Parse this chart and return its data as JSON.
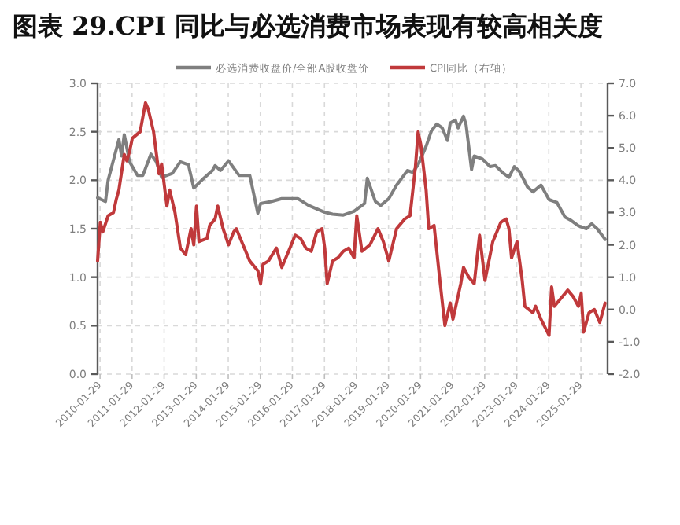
{
  "chart_data": {
    "type": "line",
    "title": "图表 29.CPI 同比与必选消费市场表现有较高相关度",
    "legend": "top",
    "grid": true,
    "xlim": [
      "2010-01-01",
      "2025-11-29"
    ],
    "xticks": [
      "2010-01-29",
      "2011-01-29",
      "2012-01-29",
      "2013-01-29",
      "2014-01-29",
      "2015-01-29",
      "2016-01-29",
      "2017-01-29",
      "2018-01-29",
      "2019-01-29",
      "2020-01-29",
      "2021-01-29",
      "2022-01-29",
      "2023-01-29",
      "2024-01-29",
      "2025-01-29"
    ],
    "ylim": [
      0,
      3
    ],
    "yticks": [
      {
        "value": 0,
        "label": "0.0"
      },
      0.5,
      {
        "value": 1,
        "label": "1.0"
      },
      1.5,
      {
        "value": 2,
        "label": "2.0"
      },
      2.5,
      {
        "value": 3,
        "label": "3.0"
      }
    ],
    "y2lim": [
      -2,
      7
    ],
    "y2ticks": [
      {
        "value": -2,
        "label": "-2.0"
      },
      {
        "value": -1,
        "label": "-1.0"
      },
      {
        "value": 0,
        "label": "0.0"
      },
      {
        "value": 1,
        "label": "1.0"
      },
      {
        "value": 2,
        "label": "2.0"
      },
      {
        "value": 3,
        "label": "3.0"
      },
      {
        "value": 4,
        "label": "4.0"
      },
      {
        "value": 5,
        "label": "5.0"
      },
      {
        "value": 6,
        "label": "6.0"
      },
      {
        "value": 7,
        "label": "7.0"
      }
    ],
    "series": [
      {
        "name": "必选消费收盘价/全部A股收盘价",
        "color": "#7f7f7f",
        "x": [
          "2010-01",
          "2010-04",
          "2010-05",
          "2010-09",
          "2010-10",
          "2010-11",
          "2011-01",
          "2011-04",
          "2011-06",
          "2011-09",
          "2011-11",
          "2012-01",
          "2012-05",
          "2012-08",
          "2012-11",
          "2013-01",
          "2013-04",
          "2013-08",
          "2013-09",
          "2013-11",
          "2014-02",
          "2014-06",
          "2014-10",
          "2015-01",
          "2015-02",
          "2015-06",
          "2015-10",
          "2016-04",
          "2016-08",
          "2017-02",
          "2017-05",
          "2017-09",
          "2018-01",
          "2018-05",
          "2018-06",
          "2018-09",
          "2018-11",
          "2019-02",
          "2019-05",
          "2019-09",
          "2019-11",
          "2020-01",
          "2020-04",
          "2020-06",
          "2020-08",
          "2020-10",
          "2020-12",
          "2021-01",
          "2021-03",
          "2021-04",
          "2021-06",
          "2021-07",
          "2021-09",
          "2021-10",
          "2022-01",
          "2022-04",
          "2022-06",
          "2022-09",
          "2022-11",
          "2023-01",
          "2023-03",
          "2023-06",
          "2023-08",
          "2023-11",
          "2024-02",
          "2024-05",
          "2024-08",
          "2024-10",
          "2025-01",
          "2025-04",
          "2025-06",
          "2025-08",
          "2025-11"
        ],
        "values": [
          1.82,
          1.78,
          2.0,
          2.42,
          2.25,
          2.47,
          2.19,
          2.05,
          2.05,
          2.27,
          2.19,
          2.03,
          2.07,
          2.19,
          2.16,
          1.92,
          2.0,
          2.1,
          2.15,
          2.1,
          2.2,
          2.05,
          2.05,
          1.66,
          1.76,
          1.78,
          1.81,
          1.81,
          1.74,
          1.67,
          1.65,
          1.64,
          1.68,
          1.76,
          2.02,
          1.78,
          1.74,
          1.81,
          1.95,
          2.1,
          2.08,
          2.16,
          2.35,
          2.51,
          2.58,
          2.54,
          2.41,
          2.59,
          2.62,
          2.54,
          2.66,
          2.57,
          2.11,
          2.25,
          2.22,
          2.14,
          2.15,
          2.07,
          2.03,
          2.14,
          2.09,
          1.93,
          1.88,
          1.95,
          1.8,
          1.77,
          1.62,
          1.59,
          1.53,
          1.5,
          1.55,
          1.5,
          1.39
        ]
      },
      {
        "name": "CPI同比（右轴）",
        "color": "#c0393b",
        "axis": "y2",
        "x": [
          "2010-01",
          "2010-02",
          "2010-03",
          "2010-05",
          "2010-07",
          "2010-08",
          "2010-09",
          "2010-11",
          "2010-12",
          "2011-01",
          "2011-02",
          "2011-05",
          "2011-07",
          "2011-08",
          "2011-10",
          "2011-12",
          "2012-01",
          "2012-03",
          "2012-04",
          "2012-06",
          "2012-08",
          "2012-10",
          "2012-12",
          "2013-01",
          "2013-02",
          "2013-03",
          "2013-06",
          "2013-07",
          "2013-09",
          "2013-10",
          "2013-12",
          "2014-02",
          "2014-04",
          "2014-05",
          "2014-07",
          "2014-10",
          "2015-01",
          "2015-02",
          "2015-03",
          "2015-05",
          "2015-08",
          "2015-10",
          "2016-01",
          "2016-03",
          "2016-05",
          "2016-07",
          "2016-09",
          "2016-11",
          "2017-01",
          "2017-02",
          "2017-03",
          "2017-05",
          "2017-07",
          "2017-09",
          "2017-11",
          "2018-01",
          "2018-02",
          "2018-04",
          "2018-07",
          "2018-10",
          "2018-12",
          "2019-02",
          "2019-05",
          "2019-08",
          "2019-10",
          "2019-12",
          "2020-01",
          "2020-02",
          "2020-04",
          "2020-05",
          "2020-07",
          "2020-09",
          "2020-11",
          "2021-01",
          "2021-02",
          "2021-05",
          "2021-06",
          "2021-08",
          "2021-10",
          "2021-12",
          "2022-02",
          "2022-05",
          "2022-08",
          "2022-10",
          "2022-11",
          "2022-12",
          "2023-02",
          "2023-04",
          "2023-05",
          "2023-08",
          "2023-09",
          "2023-11",
          "2024-02",
          "2024-03",
          "2024-04",
          "2024-06",
          "2024-09",
          "2024-11",
          "2025-01",
          "2025-02",
          "2025-03",
          "2025-05",
          "2025-07",
          "2025-09",
          "2025-11"
        ],
        "values": [
          1.5,
          2.7,
          2.4,
          2.9,
          3.0,
          3.4,
          3.7,
          4.8,
          4.6,
          4.9,
          5.3,
          5.5,
          6.4,
          6.2,
          5.5,
          4.2,
          4.5,
          3.2,
          3.7,
          3.0,
          1.9,
          1.7,
          2.5,
          2.0,
          3.2,
          2.1,
          2.2,
          2.6,
          2.8,
          3.2,
          2.5,
          2.0,
          2.4,
          2.5,
          2.1,
          1.5,
          1.2,
          0.8,
          1.4,
          1.5,
          1.9,
          1.3,
          1.9,
          2.3,
          2.2,
          1.9,
          1.8,
          2.4,
          2.5,
          1.9,
          0.8,
          1.5,
          1.6,
          1.8,
          1.9,
          1.6,
          2.9,
          1.8,
          2.0,
          2.5,
          2.1,
          1.5,
          2.5,
          2.8,
          2.9,
          4.4,
          5.5,
          5.1,
          3.7,
          2.5,
          2.6,
          1.0,
          -0.5,
          0.2,
          -0.3,
          0.8,
          1.3,
          1.0,
          0.8,
          2.3,
          0.9,
          2.1,
          2.7,
          2.8,
          2.5,
          1.6,
          2.1,
          0.9,
          0.1,
          -0.1,
          0.1,
          -0.3,
          -0.8,
          0.7,
          0.1,
          0.3,
          0.6,
          0.4,
          0.1,
          0.5,
          -0.7,
          -0.1,
          0.0,
          -0.4,
          0.2
        ]
      }
    ]
  }
}
